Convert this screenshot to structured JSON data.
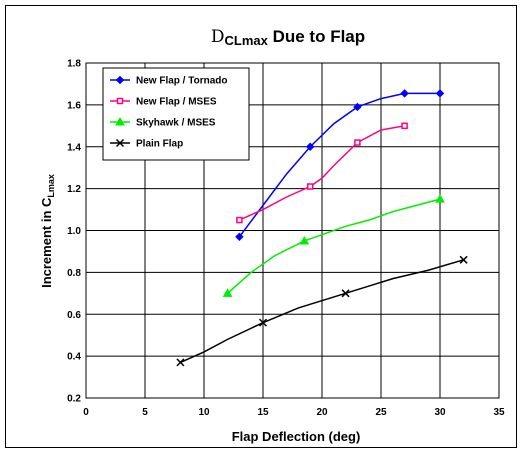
{
  "chart_data": {
    "type": "line",
    "title_symbol": "D",
    "title_sub": "CLmax",
    "title_rest": " Due to Flap",
    "xlabel": "Flap Deflection (deg)",
    "ylabel_main": "Increment in C",
    "ylabel_sub": "Lmax",
    "xlim": [
      0,
      35
    ],
    "ylim": [
      0.2,
      1.8
    ],
    "xticks": [
      "0",
      "5",
      "10",
      "15",
      "20",
      "25",
      "30",
      "35"
    ],
    "yticks": [
      "0.2",
      "0.4",
      "0.6",
      "0.8",
      "1.0",
      "1.2",
      "1.4",
      "1.6",
      "1.8"
    ],
    "grid": "major, black",
    "legend_position": "top-left",
    "series": [
      {
        "name": "New Flap / Tornado",
        "color": "#0000ff",
        "marker": "diamond",
        "x": [
          13,
          15,
          17,
          19,
          21,
          23,
          25,
          27,
          30
        ],
        "y": [
          0.97,
          1.12,
          1.27,
          1.4,
          1.51,
          1.59,
          1.63,
          1.655,
          1.655
        ],
        "marked": [
          [
            13,
            0.97
          ],
          [
            19,
            1.4
          ],
          [
            23,
            1.59
          ],
          [
            27,
            1.655
          ],
          [
            30,
            1.655
          ]
        ]
      },
      {
        "name": "New Flap / MSES",
        "color": "#ff0080",
        "marker": "square",
        "x": [
          13,
          15,
          17,
          19,
          20,
          21,
          23,
          25,
          27
        ],
        "y": [
          1.05,
          1.1,
          1.16,
          1.21,
          1.25,
          1.31,
          1.42,
          1.48,
          1.5
        ],
        "marked": [
          [
            13,
            1.05
          ],
          [
            19,
            1.21
          ],
          [
            23,
            1.42
          ],
          [
            27,
            1.5
          ]
        ]
      },
      {
        "name": "Skyhawk / MSES",
        "color": "#00ee00",
        "marker": "triangle",
        "x": [
          12,
          14,
          16,
          18.5,
          20,
          22,
          24,
          26,
          28,
          30
        ],
        "y": [
          0.7,
          0.8,
          0.88,
          0.95,
          0.98,
          1.02,
          1.05,
          1.09,
          1.12,
          1.15
        ],
        "marked": [
          [
            12,
            0.7
          ],
          [
            18.5,
            0.95
          ],
          [
            30,
            1.15
          ]
        ]
      },
      {
        "name": "Plain Flap",
        "color": "#000000",
        "marker": "x",
        "x": [
          8,
          10,
          12,
          15,
          18,
          22,
          26,
          29,
          32
        ],
        "y": [
          0.37,
          0.42,
          0.48,
          0.56,
          0.63,
          0.7,
          0.77,
          0.81,
          0.86
        ],
        "marked": [
          [
            8,
            0.37
          ],
          [
            15,
            0.56
          ],
          [
            22,
            0.7
          ],
          [
            32,
            0.86
          ]
        ]
      }
    ]
  }
}
